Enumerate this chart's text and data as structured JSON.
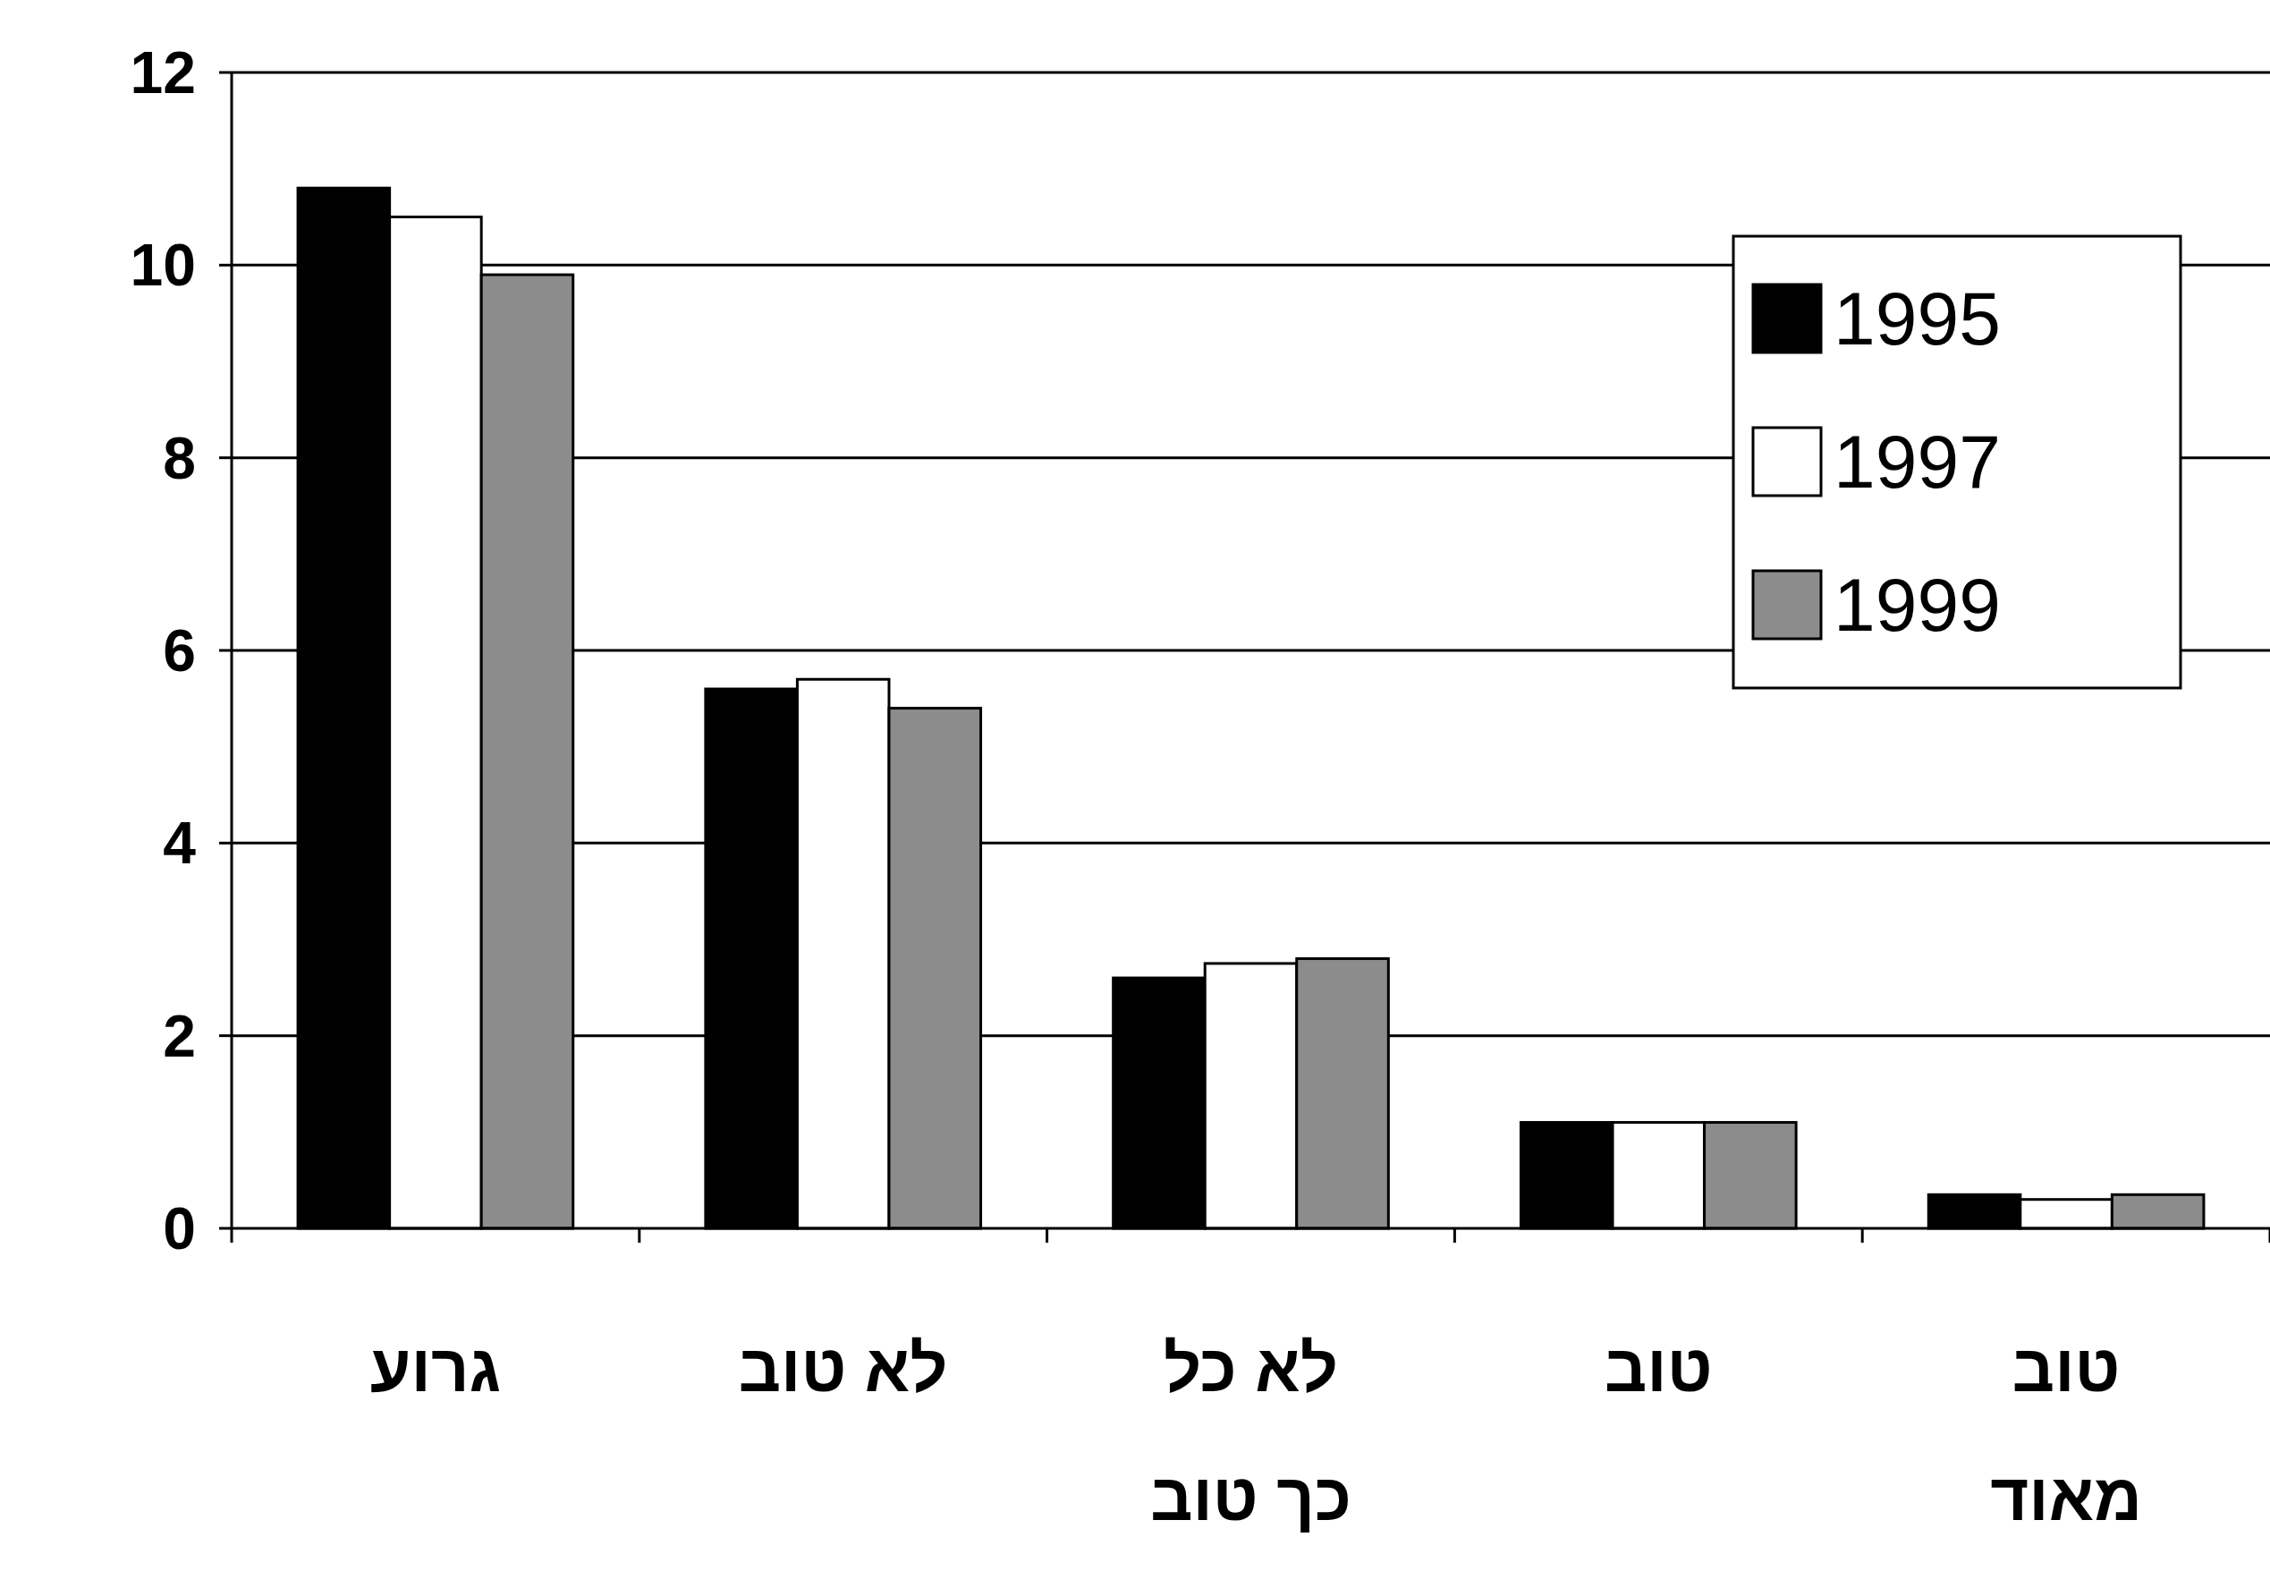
{
  "chart_data": {
    "type": "bar",
    "categories": [
      "גרוע",
      "לא טוב",
      "לא כל כך טוב",
      "טוב",
      "טוב מאוד"
    ],
    "series": [
      {
        "name": "1995",
        "color": "#000000",
        "values": [
          10.8,
          5.6,
          2.6,
          1.1,
          0.35
        ]
      },
      {
        "name": "1997",
        "color": "#ffffff",
        "values": [
          10.5,
          5.7,
          2.75,
          1.1,
          0.3
        ]
      },
      {
        "name": "1999",
        "color": "#8c8c8c",
        "values": [
          9.9,
          5.4,
          2.8,
          1.1,
          0.35
        ]
      }
    ],
    "ylim": [
      0,
      12
    ],
    "yticks": [
      0,
      2,
      4,
      6,
      8,
      10,
      12
    ],
    "grid": "y",
    "legend": "top right"
  }
}
